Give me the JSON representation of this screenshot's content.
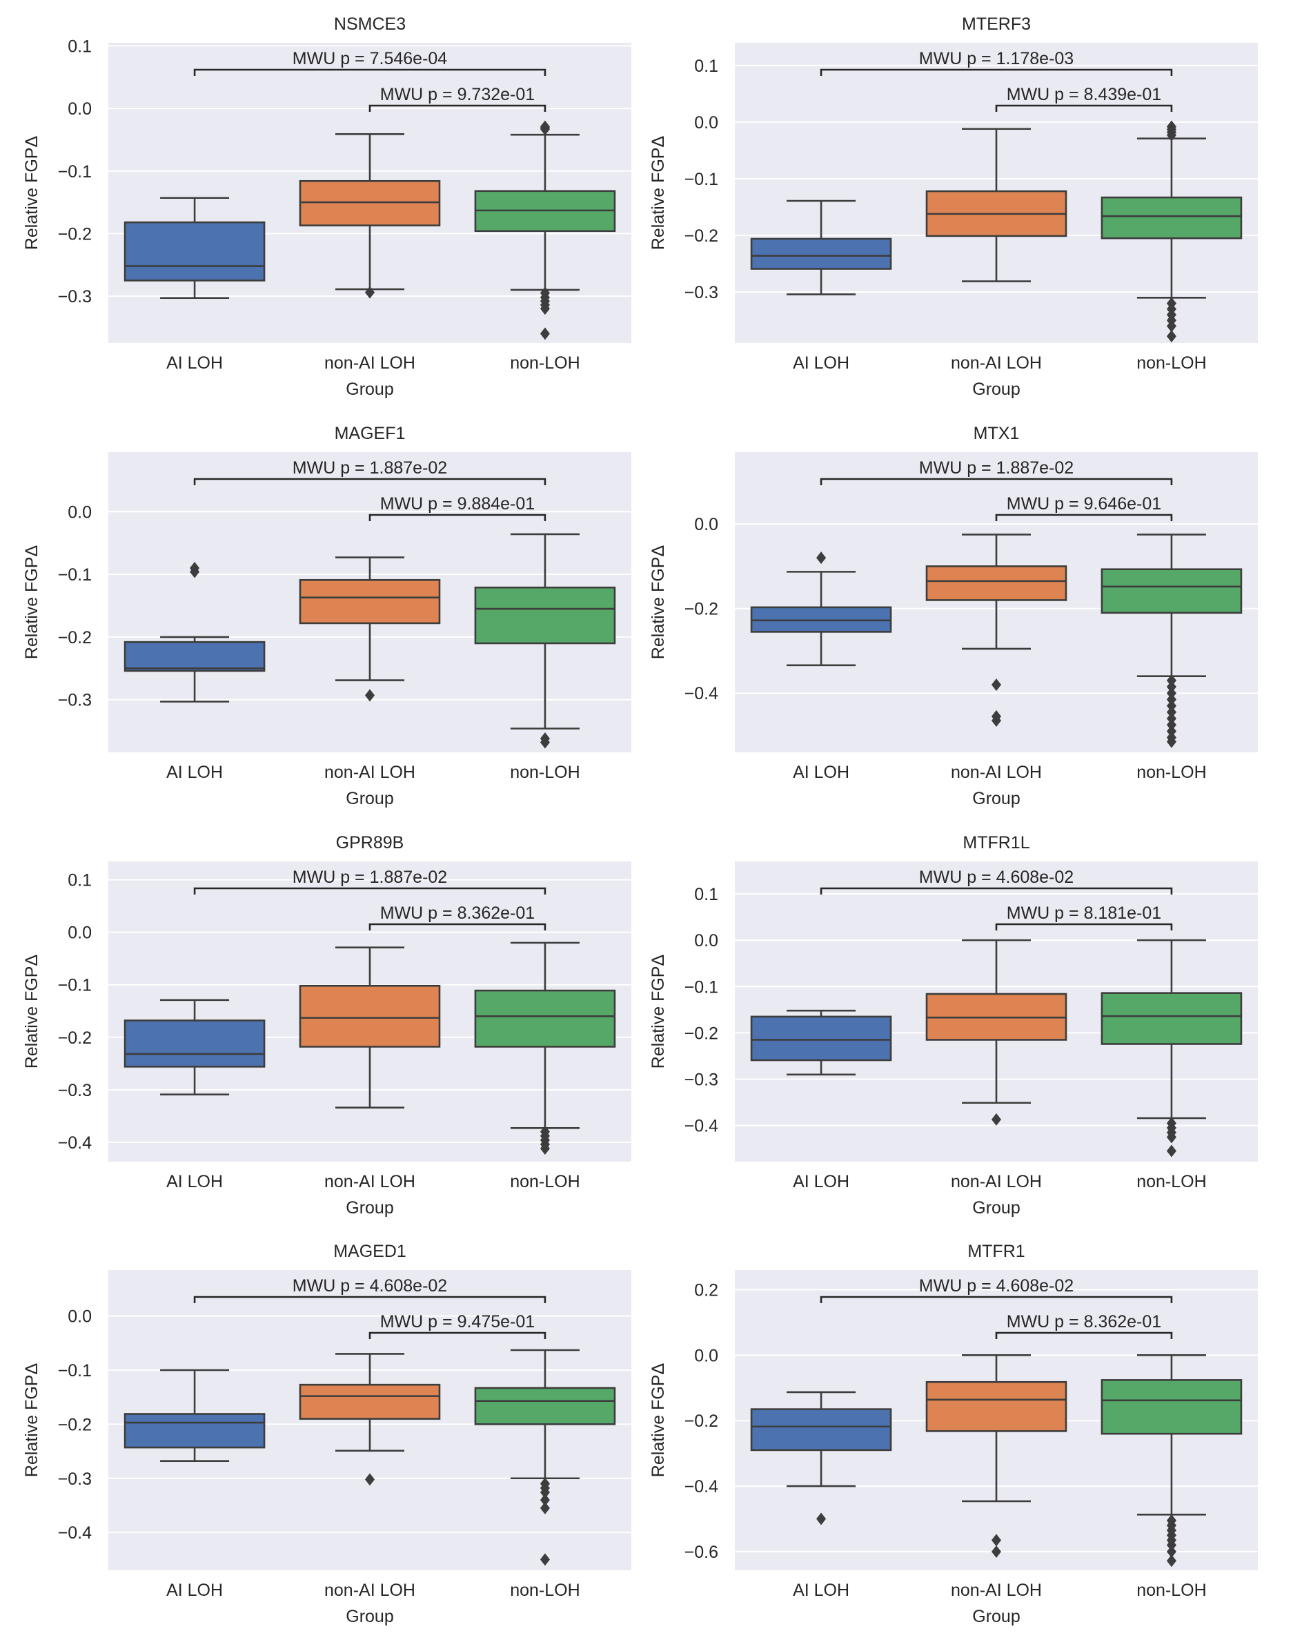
{
  "figure": {
    "x_axis_label": "Group",
    "y_axis_label": "Relative FGPΔ",
    "group_colors": [
      "#4c72b0",
      "#dd8452",
      "#55a868"
    ]
  },
  "chart_data": [
    {
      "type": "box",
      "title": "NSMCE3",
      "categories": [
        "AI LOH",
        "non-AI LOH",
        "non-LOH"
      ],
      "xlabel": "Group",
      "ylabel": "Relative FGPΔ",
      "ylim": [
        -0.375,
        0.105
      ],
      "yticks": [
        0.1,
        0.0,
        -0.1,
        -0.2,
        -0.3
      ],
      "ytick_labels": [
        "0.1",
        "0.0",
        "−0.1",
        "−0.2",
        "−0.3"
      ],
      "boxes": [
        {
          "q1": -0.275,
          "median": -0.252,
          "q3": -0.182,
          "whisker_low": -0.303,
          "whisker_high": -0.143,
          "outliers": []
        },
        {
          "q1": -0.187,
          "median": -0.15,
          "q3": -0.116,
          "whisker_low": -0.289,
          "whisker_high": -0.041,
          "outliers": [
            -0.294
          ]
        },
        {
          "q1": -0.196,
          "median": -0.163,
          "q3": -0.132,
          "whisker_low": -0.29,
          "whisker_high": -0.042,
          "outliers": [
            -0.029,
            -0.031,
            -0.033,
            -0.295,
            -0.302,
            -0.308,
            -0.314,
            -0.32,
            -0.36
          ]
        }
      ],
      "comparisons": [
        {
          "text": "MWU p = 7.546e-04",
          "from": 0,
          "to": 2
        },
        {
          "text": "MWU p = 9.732e-01",
          "from": 1,
          "to": 2
        }
      ]
    },
    {
      "type": "box",
      "title": "MTERF3",
      "categories": [
        "AI LOH",
        "non-AI LOH",
        "non-LOH"
      ],
      "xlabel": "Group",
      "ylabel": "Relative FGPΔ",
      "ylim": [
        -0.39,
        0.14
      ],
      "yticks": [
        0.1,
        0.0,
        -0.1,
        -0.2,
        -0.3
      ],
      "ytick_labels": [
        "0.1",
        "0.0",
        "−0.1",
        "−0.2",
        "−0.3"
      ],
      "boxes": [
        {
          "q1": -0.259,
          "median": -0.236,
          "q3": -0.206,
          "whisker_low": -0.304,
          "whisker_high": -0.139,
          "outliers": []
        },
        {
          "q1": -0.201,
          "median": -0.162,
          "q3": -0.122,
          "whisker_low": -0.281,
          "whisker_high": -0.012,
          "outliers": []
        },
        {
          "q1": -0.205,
          "median": -0.166,
          "q3": -0.133,
          "whisker_low": -0.31,
          "whisker_high": -0.029,
          "outliers": [
            -0.008,
            -0.013,
            -0.018,
            -0.023,
            -0.32,
            -0.33,
            -0.34,
            -0.35,
            -0.36,
            -0.378
          ]
        }
      ],
      "comparisons": [
        {
          "text": "MWU p = 1.178e-03",
          "from": 0,
          "to": 2
        },
        {
          "text": "MWU p = 8.439e-01",
          "from": 1,
          "to": 2
        }
      ]
    },
    {
      "type": "box",
      "title": "MAGEF1",
      "categories": [
        "AI LOH",
        "non-AI LOH",
        "non-LOH"
      ],
      "xlabel": "Group",
      "ylabel": "Relative FGPΔ",
      "ylim": [
        -0.384,
        0.095
      ],
      "yticks": [
        0.0,
        -0.1,
        -0.2,
        -0.3
      ],
      "ytick_labels": [
        "0.0",
        "−0.1",
        "−0.2",
        "−0.3"
      ],
      "boxes": [
        {
          "q1": -0.254,
          "median": -0.25,
          "q3": -0.208,
          "whisker_low": -0.303,
          "whisker_high": -0.2,
          "outliers": [
            -0.09,
            -0.096
          ]
        },
        {
          "q1": -0.178,
          "median": -0.137,
          "q3": -0.109,
          "whisker_low": -0.269,
          "whisker_high": -0.073,
          "outliers": [
            -0.293
          ]
        },
        {
          "q1": -0.21,
          "median": -0.155,
          "q3": -0.121,
          "whisker_low": -0.346,
          "whisker_high": -0.036,
          "outliers": [
            -0.362,
            -0.368
          ]
        }
      ],
      "comparisons": [
        {
          "text": "MWU p = 1.887e-02",
          "from": 0,
          "to": 2
        },
        {
          "text": "MWU p = 9.884e-01",
          "from": 1,
          "to": 2
        }
      ]
    },
    {
      "type": "box",
      "title": "MTX1",
      "categories": [
        "AI LOH",
        "non-AI LOH",
        "non-LOH"
      ],
      "xlabel": "Group",
      "ylabel": "Relative FGPΔ",
      "ylim": [
        -0.54,
        0.17
      ],
      "yticks": [
        0.0,
        -0.2,
        -0.4
      ],
      "ytick_labels": [
        "0.0",
        "−0.2",
        "−0.4"
      ],
      "boxes": [
        {
          "q1": -0.255,
          "median": -0.228,
          "q3": -0.197,
          "whisker_low": -0.334,
          "whisker_high": -0.113,
          "outliers": [
            -0.08
          ]
        },
        {
          "q1": -0.18,
          "median": -0.135,
          "q3": -0.1,
          "whisker_low": -0.295,
          "whisker_high": -0.025,
          "outliers": [
            -0.38,
            -0.455,
            -0.465
          ]
        },
        {
          "q1": -0.21,
          "median": -0.148,
          "q3": -0.107,
          "whisker_low": -0.36,
          "whisker_high": -0.025,
          "outliers": [
            -0.37,
            -0.385,
            -0.4,
            -0.415,
            -0.43,
            -0.445,
            -0.46,
            -0.475,
            -0.49,
            -0.505,
            -0.515
          ]
        }
      ],
      "comparisons": [
        {
          "text": "MWU p = 1.887e-02",
          "from": 0,
          "to": 2
        },
        {
          "text": "MWU p = 9.646e-01",
          "from": 1,
          "to": 2
        }
      ]
    },
    {
      "type": "box",
      "title": "GPR89B",
      "categories": [
        "AI LOH",
        "non-AI LOH",
        "non-LOH"
      ],
      "xlabel": "Group",
      "ylabel": "Relative FGPΔ",
      "ylim": [
        -0.437,
        0.135
      ],
      "yticks": [
        0.1,
        0.0,
        -0.1,
        -0.2,
        -0.3,
        -0.4
      ],
      "ytick_labels": [
        "0.1",
        "0.0",
        "−0.1",
        "−0.2",
        "−0.3",
        "−0.4"
      ],
      "boxes": [
        {
          "q1": -0.256,
          "median": -0.232,
          "q3": -0.168,
          "whisker_low": -0.309,
          "whisker_high": -0.129,
          "outliers": []
        },
        {
          "q1": -0.218,
          "median": -0.163,
          "q3": -0.102,
          "whisker_low": -0.334,
          "whisker_high": -0.029,
          "outliers": []
        },
        {
          "q1": -0.218,
          "median": -0.16,
          "q3": -0.111,
          "whisker_low": -0.373,
          "whisker_high": -0.02,
          "outliers": [
            -0.38,
            -0.388,
            -0.396,
            -0.404,
            -0.412
          ]
        }
      ],
      "comparisons": [
        {
          "text": "MWU p = 1.887e-02",
          "from": 0,
          "to": 2
        },
        {
          "text": "MWU p = 8.362e-01",
          "from": 1,
          "to": 2
        }
      ]
    },
    {
      "type": "box",
      "title": "MTFR1L",
      "categories": [
        "AI LOH",
        "non-AI LOH",
        "non-LOH"
      ],
      "xlabel": "Group",
      "ylabel": "Relative FGPΔ",
      "ylim": [
        -0.478,
        0.17
      ],
      "yticks": [
        0.1,
        0.0,
        -0.1,
        -0.2,
        -0.3,
        -0.4
      ],
      "ytick_labels": [
        "0.1",
        "0.0",
        "−0.1",
        "−0.2",
        "−0.3",
        "−0.4"
      ],
      "boxes": [
        {
          "q1": -0.259,
          "median": -0.215,
          "q3": -0.165,
          "whisker_low": -0.29,
          "whisker_high": -0.152,
          "outliers": []
        },
        {
          "q1": -0.215,
          "median": -0.167,
          "q3": -0.116,
          "whisker_low": -0.351,
          "whisker_high": 0.0,
          "outliers": [
            -0.387
          ]
        },
        {
          "q1": -0.224,
          "median": -0.164,
          "q3": -0.114,
          "whisker_low": -0.384,
          "whisker_high": 0.0,
          "outliers": [
            -0.395,
            -0.405,
            -0.415,
            -0.425,
            -0.455
          ]
        }
      ],
      "comparisons": [
        {
          "text": "MWU p = 4.608e-02",
          "from": 0,
          "to": 2
        },
        {
          "text": "MWU p = 8.181e-01",
          "from": 1,
          "to": 2
        }
      ]
    },
    {
      "type": "box",
      "title": "MAGED1",
      "categories": [
        "AI LOH",
        "non-AI LOH",
        "non-LOH"
      ],
      "xlabel": "Group",
      "ylabel": "Relative FGPΔ",
      "ylim": [
        -0.47,
        0.085
      ],
      "yticks": [
        0.0,
        -0.1,
        -0.2,
        -0.3,
        -0.4
      ],
      "ytick_labels": [
        "0.0",
        "−0.1",
        "−0.2",
        "−0.3",
        "−0.4"
      ],
      "boxes": [
        {
          "q1": -0.243,
          "median": -0.197,
          "q3": -0.181,
          "whisker_low": -0.268,
          "whisker_high": -0.1,
          "outliers": []
        },
        {
          "q1": -0.19,
          "median": -0.148,
          "q3": -0.127,
          "whisker_low": -0.249,
          "whisker_high": -0.07,
          "outliers": [
            -0.302
          ]
        },
        {
          "q1": -0.2,
          "median": -0.157,
          "q3": -0.133,
          "whisker_low": -0.3,
          "whisker_high": -0.063,
          "outliers": [
            -0.31,
            -0.318,
            -0.326,
            -0.34,
            -0.355,
            -0.45
          ]
        }
      ],
      "comparisons": [
        {
          "text": "MWU p = 4.608e-02",
          "from": 0,
          "to": 2
        },
        {
          "text": "MWU p = 9.475e-01",
          "from": 1,
          "to": 2
        }
      ]
    },
    {
      "type": "box",
      "title": "MTFR1",
      "categories": [
        "AI LOH",
        "non-AI LOH",
        "non-LOH"
      ],
      "xlabel": "Group",
      "ylabel": "Relative FGPΔ",
      "ylim": [
        -0.657,
        0.26
      ],
      "yticks": [
        0.2,
        0.0,
        -0.2,
        -0.4,
        -0.6
      ],
      "ytick_labels": [
        "0.2",
        "0.0",
        "−0.2",
        "−0.4",
        "−0.6"
      ],
      "boxes": [
        {
          "q1": -0.29,
          "median": -0.218,
          "q3": -0.165,
          "whisker_low": -0.4,
          "whisker_high": -0.113,
          "outliers": [
            -0.5
          ]
        },
        {
          "q1": -0.232,
          "median": -0.136,
          "q3": -0.082,
          "whisker_low": -0.446,
          "whisker_high": 0.0,
          "outliers": [
            -0.565,
            -0.6
          ]
        },
        {
          "q1": -0.24,
          "median": -0.138,
          "q3": -0.076,
          "whisker_low": -0.487,
          "whisker_high": 0.0,
          "outliers": [
            -0.505,
            -0.52,
            -0.535,
            -0.55,
            -0.565,
            -0.58,
            -0.6,
            -0.628
          ]
        }
      ],
      "comparisons": [
        {
          "text": "MWU p = 4.608e-02",
          "from": 0,
          "to": 2
        },
        {
          "text": "MWU p = 8.362e-01",
          "from": 1,
          "to": 2
        }
      ]
    }
  ]
}
